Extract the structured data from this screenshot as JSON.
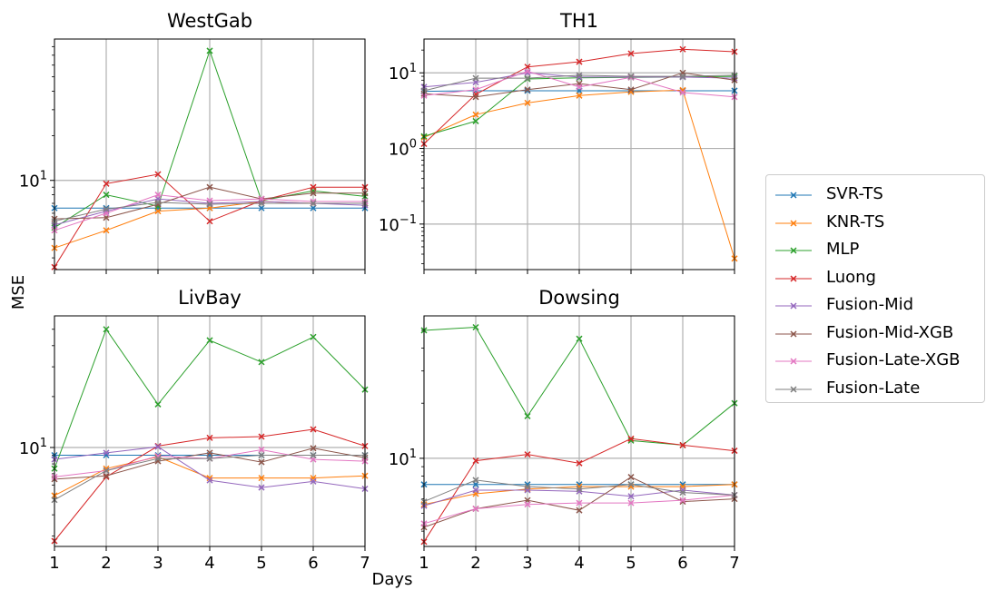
{
  "figure": {
    "ylabel": "MSE",
    "xlabel": "Days"
  },
  "colors": {
    "SVR-TS": "#1f77b4",
    "KNR-TS": "#ff7f0e",
    "MLP": "#2ca02c",
    "Luong": "#d62728",
    "Fusion-Mid": "#9467bd",
    "Fusion-Mid-XGB": "#8c564b",
    "Fusion-Late-XGB": "#e377c2",
    "Fusion-Late": "#7f7f7f"
  },
  "legend": [
    "SVR-TS",
    "KNR-TS",
    "MLP",
    "Luong",
    "Fusion-Mid",
    "Fusion-Mid-XGB",
    "Fusion-Late-XGB",
    "Fusion-Late"
  ],
  "chart_data": [
    {
      "type": "line",
      "title": "WestGab",
      "yscale": "log",
      "x": [
        1,
        2,
        3,
        4,
        5,
        6,
        7
      ],
      "xticks": [
        "1",
        "2",
        "3",
        "4",
        "5",
        "6",
        "7"
      ],
      "ylim": [
        2.5,
        90
      ],
      "yticks": [
        {
          "value": 10,
          "label": "10^1"
        }
      ],
      "grid": true,
      "series": [
        {
          "name": "SVR-TS",
          "values": [
            6.5,
            6.5,
            6.5,
            6.5,
            6.5,
            6.5,
            6.5
          ]
        },
        {
          "name": "KNR-TS",
          "values": [
            3.5,
            4.6,
            6.2,
            6.5,
            7.2,
            7.0,
            7.0
          ]
        },
        {
          "name": "MLP",
          "values": [
            4.8,
            8.0,
            6.7,
            75.0,
            7.3,
            8.5,
            7.8
          ]
        },
        {
          "name": "Luong",
          "values": [
            2.6,
            9.5,
            11.0,
            5.3,
            7.3,
            9.0,
            9.0
          ]
        },
        {
          "name": "Fusion-Mid",
          "values": [
            5.0,
            6.2,
            7.5,
            7.0,
            7.2,
            7.0,
            6.8
          ]
        },
        {
          "name": "Fusion-Mid-XGB",
          "values": [
            5.5,
            5.6,
            6.9,
            9.0,
            7.5,
            8.2,
            8.2
          ]
        },
        {
          "name": "Fusion-Late-XGB",
          "values": [
            4.6,
            6.0,
            8.0,
            7.3,
            7.5,
            7.2,
            7.2
          ]
        },
        {
          "name": "Fusion-Late",
          "values": [
            5.3,
            6.4,
            7.1,
            6.9,
            7.0,
            7.0,
            7.0
          ]
        }
      ]
    },
    {
      "type": "line",
      "title": "TH1",
      "yscale": "log",
      "x": [
        1,
        2,
        3,
        4,
        5,
        6,
        7
      ],
      "xticks": [
        "1",
        "2",
        "3",
        "4",
        "5",
        "6",
        "7"
      ],
      "ylim": [
        0.025,
        28
      ],
      "yticks": [
        {
          "value": 0.1,
          "label": "10^-1"
        },
        {
          "value": 1,
          "label": "10^0"
        },
        {
          "value": 10,
          "label": "10^1"
        }
      ],
      "grid": true,
      "series": [
        {
          "name": "SVR-TS",
          "values": [
            5.7,
            5.8,
            5.8,
            5.8,
            5.8,
            5.8,
            5.8
          ]
        },
        {
          "name": "KNR-TS",
          "values": [
            1.4,
            2.8,
            4.0,
            5.0,
            5.6,
            5.9,
            0.035
          ]
        },
        {
          "name": "MLP",
          "values": [
            1.45,
            2.3,
            8.3,
            8.6,
            8.7,
            8.8,
            9.0
          ]
        },
        {
          "name": "Luong",
          "values": [
            1.15,
            5.2,
            12.0,
            14.0,
            18.0,
            20.5,
            19.0
          ]
        },
        {
          "name": "Fusion-Mid",
          "values": [
            6.5,
            7.5,
            10.0,
            8.8,
            8.8,
            8.8,
            8.5
          ]
        },
        {
          "name": "Fusion-Mid-XGB",
          "values": [
            5.3,
            4.8,
            6.0,
            7.2,
            6.0,
            10.0,
            8.0
          ]
        },
        {
          "name": "Fusion-Late-XGB",
          "values": [
            5.0,
            6.0,
            10.5,
            6.5,
            8.7,
            5.5,
            4.8
          ]
        },
        {
          "name": "Fusion-Late",
          "values": [
            5.8,
            8.5,
            8.5,
            9.3,
            9.0,
            9.0,
            9.3
          ]
        }
      ]
    },
    {
      "type": "line",
      "title": "LivBay",
      "yscale": "log",
      "x": [
        1,
        2,
        3,
        4,
        5,
        6,
        7
      ],
      "xticks": [
        "1",
        "2",
        "3",
        "4",
        "5",
        "6",
        "7"
      ],
      "ylim": [
        2.6,
        60
      ],
      "yticks": [
        {
          "value": 10,
          "label": "10^1"
        }
      ],
      "grid": true,
      "series": [
        {
          "name": "SVR-TS",
          "values": [
            9.0,
            9.0,
            9.0,
            9.0,
            9.0,
            9.0,
            9.0
          ]
        },
        {
          "name": "KNR-TS",
          "values": [
            5.2,
            7.5,
            8.8,
            6.6,
            6.6,
            6.6,
            6.8
          ]
        },
        {
          "name": "MLP",
          "values": [
            7.5,
            50.0,
            18.0,
            43.0,
            32.0,
            45.0,
            22.0
          ]
        },
        {
          "name": "Luong",
          "values": [
            2.8,
            6.7,
            10.2,
            11.4,
            11.6,
            12.8,
            10.2
          ]
        },
        {
          "name": "Fusion-Mid",
          "values": [
            8.5,
            9.3,
            10.1,
            6.4,
            5.8,
            6.3,
            5.7
          ]
        },
        {
          "name": "Fusion-Mid-XGB",
          "values": [
            6.5,
            6.8,
            8.3,
            9.3,
            8.2,
            9.9,
            8.7
          ]
        },
        {
          "name": "Fusion-Late-XGB",
          "values": [
            6.7,
            7.3,
            8.9,
            8.6,
            9.7,
            8.5,
            8.3
          ]
        },
        {
          "name": "Fusion-Late",
          "values": [
            4.9,
            7.3,
            8.6,
            8.6,
            9.0,
            9.0,
            9.0
          ]
        }
      ]
    },
    {
      "type": "line",
      "title": "Dowsing",
      "yscale": "log",
      "x": [
        1,
        2,
        3,
        4,
        5,
        6,
        7
      ],
      "xticks": [
        "1",
        "2",
        "3",
        "4",
        "5",
        "6",
        "7"
      ],
      "ylim": [
        3.3,
        60
      ],
      "yticks": [
        {
          "value": 10,
          "label": "10^1"
        }
      ],
      "grid": true,
      "series": [
        {
          "name": "SVR-TS",
          "values": [
            7.2,
            7.2,
            7.2,
            7.2,
            7.2,
            7.2,
            7.2
          ]
        },
        {
          "name": "KNR-TS",
          "values": [
            5.6,
            6.4,
            6.8,
            7.0,
            7.0,
            7.0,
            7.2
          ]
        },
        {
          "name": "MLP",
          "values": [
            50.0,
            52.0,
            17.0,
            45.0,
            12.5,
            11.8,
            20.0
          ]
        },
        {
          "name": "Luong",
          "values": [
            3.5,
            9.7,
            10.5,
            9.4,
            12.8,
            11.8,
            11.0
          ]
        },
        {
          "name": "Fusion-Mid",
          "values": [
            5.5,
            6.7,
            6.7,
            6.6,
            6.2,
            6.7,
            6.3
          ]
        },
        {
          "name": "Fusion-Mid-XGB",
          "values": [
            4.2,
            5.3,
            5.9,
            5.2,
            7.9,
            5.8,
            6.0
          ]
        },
        {
          "name": "Fusion-Late-XGB",
          "values": [
            4.4,
            5.3,
            5.6,
            5.7,
            5.7,
            5.9,
            6.3
          ]
        },
        {
          "name": "Fusion-Late",
          "values": [
            5.8,
            7.6,
            7.0,
            6.8,
            7.2,
            6.5,
            6.3
          ]
        }
      ]
    }
  ]
}
